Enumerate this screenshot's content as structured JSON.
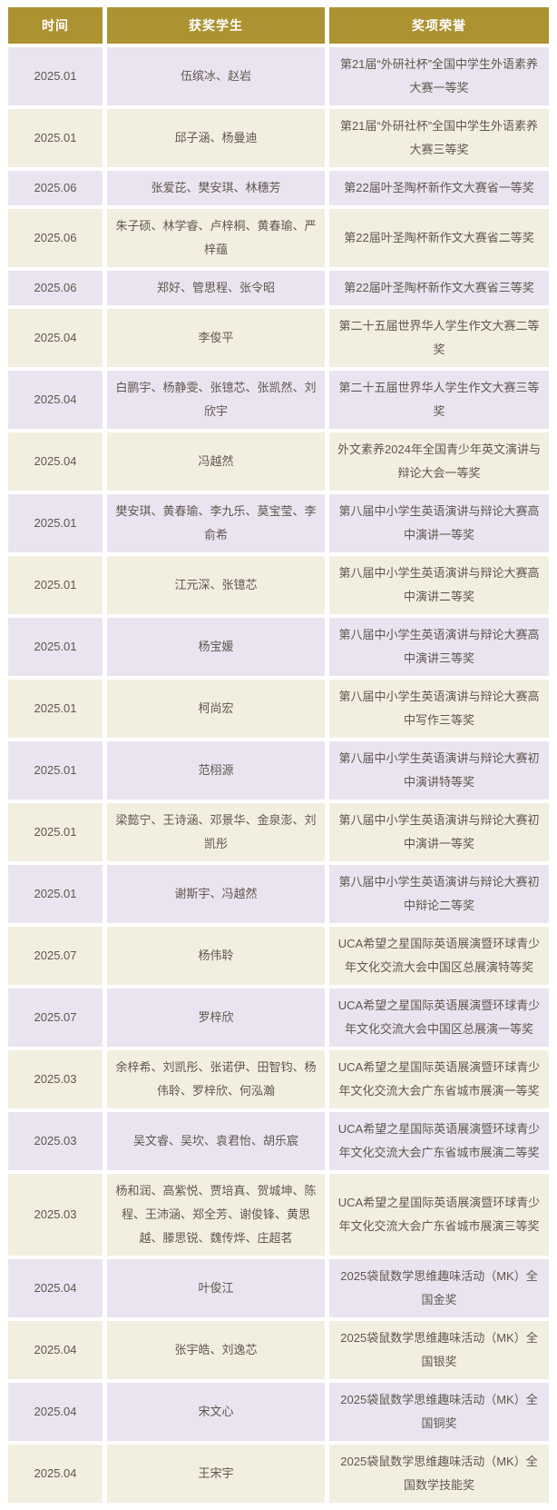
{
  "colors": {
    "header_bg": "#AC9231",
    "header_text": "#FFFFFF",
    "row_odd_bg": "#EAE4F0",
    "row_even_bg": "#F2EFE1",
    "cell_text": "#60564E",
    "page_bg": "#FFFFFF"
  },
  "table": {
    "headers": [
      "时间",
      "获奖学生",
      "奖项荣誉"
    ],
    "rows": [
      {
        "date": "2025.01",
        "students": "伍缤冰、赵岩",
        "award": "第21届“外研社杯”全国中学生外语素养大赛一等奖"
      },
      {
        "date": "2025.01",
        "students": "邱子涵、杨曼迪",
        "award": "第21届“外研社杯”全国中学生外语素养大赛三等奖"
      },
      {
        "date": "2025.06",
        "students": "张爱芘、樊安琪、林穗芳",
        "award": "第22届叶圣陶杯新作文大赛省一等奖"
      },
      {
        "date": "2025.06",
        "students": "朱子硕、林学睿、卢梓桐、黄春瑜、严梓蕴",
        "award": "第22届叶圣陶杯新作文大赛省二等奖"
      },
      {
        "date": "2025.06",
        "students": "郑好、管思程、张令昭",
        "award": "第22届叶圣陶杯新作文大赛省三等奖"
      },
      {
        "date": "2025.04",
        "students": "李俊平",
        "award": "第二十五届世界华人学生作文大赛二等奖"
      },
      {
        "date": "2025.04",
        "students": "白鹏宇、杨静雯、张镱芯、张凯然、刘欣宇",
        "award": "第二十五届世界华人学生作文大赛三等奖"
      },
      {
        "date": "2025.04",
        "students": "冯越然",
        "award": "外文素养2024年全国青少年英文演讲与辩论大会一等奖"
      },
      {
        "date": "2025.01",
        "students": "樊安琪、黄春瑜、李九乐、莫宝莹、李俞希",
        "award": "第八届中小学生英语演讲与辩论大赛高中演讲一等奖"
      },
      {
        "date": "2025.01",
        "students": "江元深、张镱芯",
        "award": "第八届中小学生英语演讲与辩论大赛高中演讲二等奖"
      },
      {
        "date": "2025.01",
        "students": "杨宝媛",
        "award": "第八届中小学生英语演讲与辩论大赛高中演讲三等奖"
      },
      {
        "date": "2025.01",
        "students": "柯尚宏",
        "award": "第八届中小学生英语演讲与辩论大赛高中写作三等奖"
      },
      {
        "date": "2025.01",
        "students": "范栩源",
        "award": "第八届中小学生英语演讲与辩论大赛初中演讲特等奖"
      },
      {
        "date": "2025.01",
        "students": "梁懿宁、王诗涵、邓景华、金泉澎、刘凯彤",
        "award": "第八届中小学生英语演讲与辩论大赛初中演讲一等奖"
      },
      {
        "date": "2025.01",
        "students": "谢斯宇、冯越然",
        "award": "第八届中小学生英语演讲与辩论大赛初中辩论二等奖"
      },
      {
        "date": "2025.07",
        "students": "杨伟聆",
        "award": "UCA希望之星国际英语展演暨环球青少年文化交流大会中国区总展演特等奖"
      },
      {
        "date": "2025.07",
        "students": "罗梓欣",
        "award": "UCA希望之星国际英语展演暨环球青少年文化交流大会中国区总展演一等奖"
      },
      {
        "date": "2025.03",
        "students": "余梓希、刘凯彤、张诺伊、田智钧、杨伟聆、罗梓欣、何泓瀚",
        "award": "UCA希望之星国际英语展演暨环球青少年文化交流大会广东省城市展演一等奖"
      },
      {
        "date": "2025.03",
        "students": "吴文睿、吴坎、袁君怡、胡乐宸",
        "award": "UCA希望之星国际英语展演暨环球青少年文化交流大会广东省城市展演二等奖"
      },
      {
        "date": "2025.03",
        "students": "杨和润、高紫悦、贾培真、贺城坤、陈程、王沛涵、郑全芳、谢俊锋、黄思越、滕思锐、魏传烨、庄超茗",
        "award": "UCA希望之星国际英语展演暨环球青少年文化交流大会广东省城市展演三等奖"
      },
      {
        "date": "2025.04",
        "students": "叶俊江",
        "award": "2025袋鼠数学思维趣味活动（MK）全国金奖"
      },
      {
        "date": "2025.04",
        "students": "张宇皓、刘逸芯",
        "award": "2025袋鼠数学思维趣味活动（MK）全国银奖"
      },
      {
        "date": "2025.04",
        "students": "宋文心",
        "award": "2025袋鼠数学思维趣味活动（MK）全国铜奖"
      },
      {
        "date": "2025.04",
        "students": "王宋宇",
        "award": "2025袋鼠数学思维趣味活动（MK）全国数学技能奖"
      }
    ]
  }
}
